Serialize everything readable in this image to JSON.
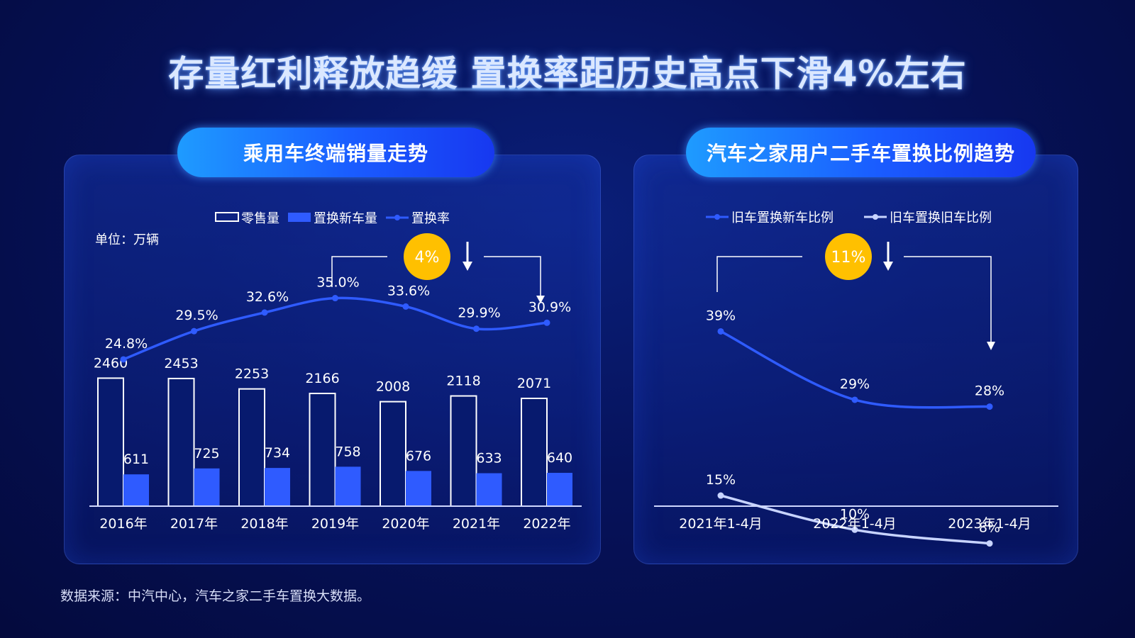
{
  "header": {
    "title": "存量红利释放趋缓  置换率距历史高点下滑4%左右"
  },
  "left_panel": {
    "title": "乘用车终端销量走势",
    "unit_label": "单位：万辆",
    "badge": "4%"
  },
  "right_panel": {
    "title": "汽车之家用户二手车置换比例趋势",
    "badge": "11%"
  },
  "footer": {
    "source": "数据来源：中汽中心，汽车之家二手车置换大数据。"
  },
  "colors": {
    "accent_blue": "#2f5bff",
    "line_blue": "#2f5bff",
    "line_white": "#c8d4ff",
    "badge_yellow": "#ffc000"
  },
  "chart_data": [
    {
      "type": "bar",
      "categories": [
        "2016年",
        "2017年",
        "2018年",
        "2019年",
        "2020年",
        "2021年",
        "2022年"
      ],
      "series": [
        {
          "name": "零售量",
          "type": "bar",
          "values": [
            2460,
            2453,
            2253,
            2166,
            2008,
            2118,
            2071
          ]
        },
        {
          "name": "置换新车量",
          "type": "bar",
          "values": [
            611,
            725,
            734,
            758,
            676,
            633,
            640
          ]
        },
        {
          "name": "置换率",
          "type": "line",
          "values": [
            24.8,
            29.5,
            32.6,
            35.0,
            33.6,
            29.9,
            30.9
          ],
          "labels": [
            "24.8%",
            "29.5%",
            "32.6%",
            "35.0%",
            "33.6%",
            "29.9%",
            "30.9%"
          ]
        }
      ],
      "legend_position": "top-center"
    },
    {
      "type": "line",
      "categories": [
        "2021年1-4月",
        "2022年1-4月",
        "2023年1-4月"
      ],
      "series": [
        {
          "name": "旧车置换新车比例",
          "values": [
            39,
            29,
            28
          ],
          "labels": [
            "39%",
            "29%",
            "28%"
          ]
        },
        {
          "name": "旧车置换旧车比例",
          "values": [
            15,
            10,
            8
          ],
          "labels": [
            "15%",
            "10%",
            "8%"
          ]
        }
      ],
      "legend_position": "top-center"
    }
  ]
}
